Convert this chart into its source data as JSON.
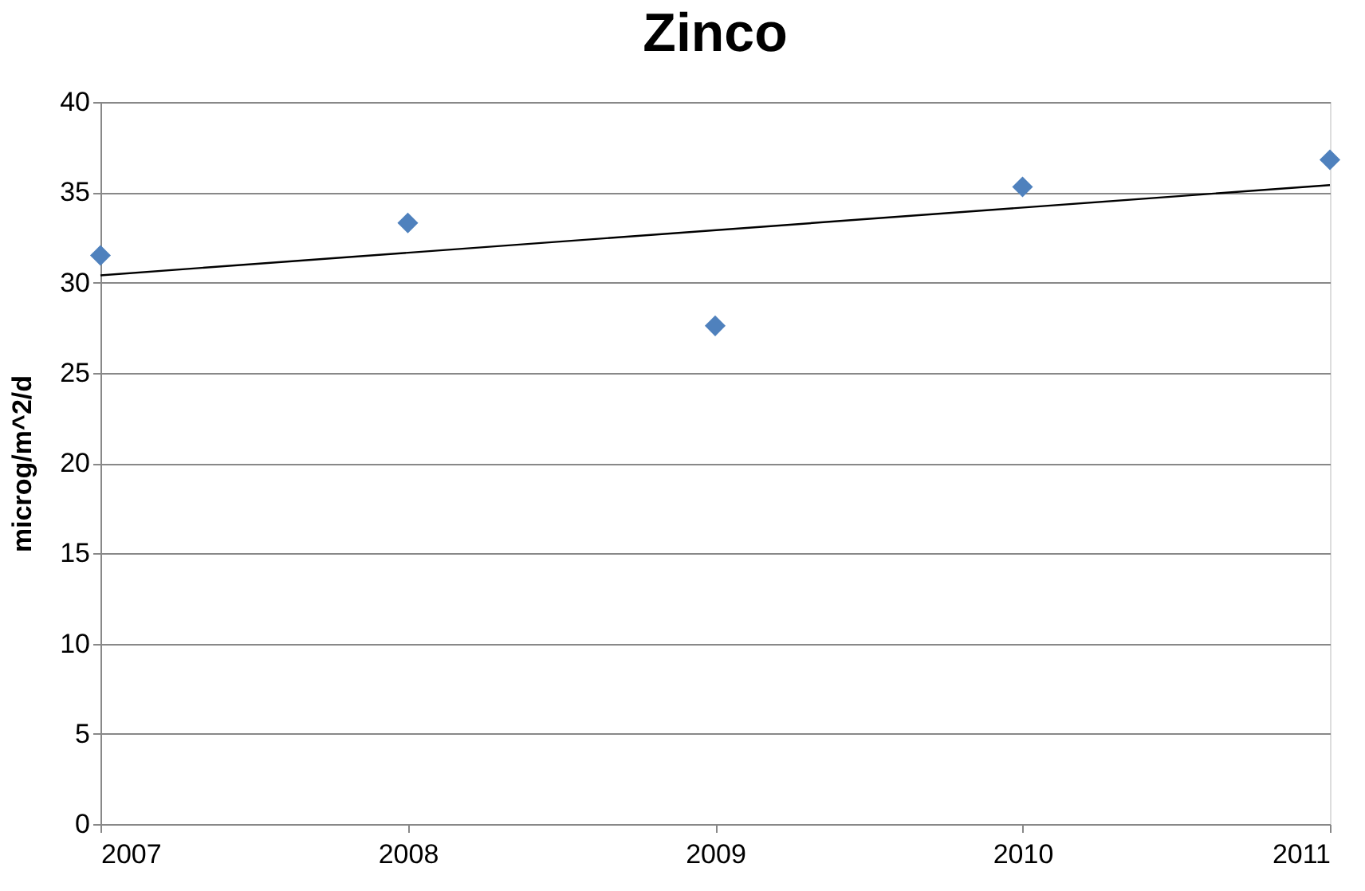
{
  "chart_data": {
    "type": "scatter",
    "title": "Zinco",
    "ylabel": "microg/m^2/d",
    "x": [
      2007,
      2008,
      2009,
      2010,
      2011
    ],
    "series": [
      {
        "color": "#4f81bd",
        "marker": "diamond",
        "values": [
          31.5,
          33.3,
          27.6,
          35.3,
          36.8
        ]
      },
      {
        "type": "line",
        "color": "#000000",
        "marker": "none",
        "line_style": "solid",
        "x": [
          2007,
          2011
        ],
        "values": [
          30.4,
          35.4
        ]
      }
    ],
    "xlim": [
      2007,
      2011
    ],
    "xticks": [
      2007,
      2008,
      2009,
      2010,
      2011
    ],
    "ylim": [
      0,
      40
    ],
    "yticks": [
      0,
      5,
      10,
      15,
      20,
      25,
      30,
      35,
      40
    ],
    "grid": "y"
  }
}
